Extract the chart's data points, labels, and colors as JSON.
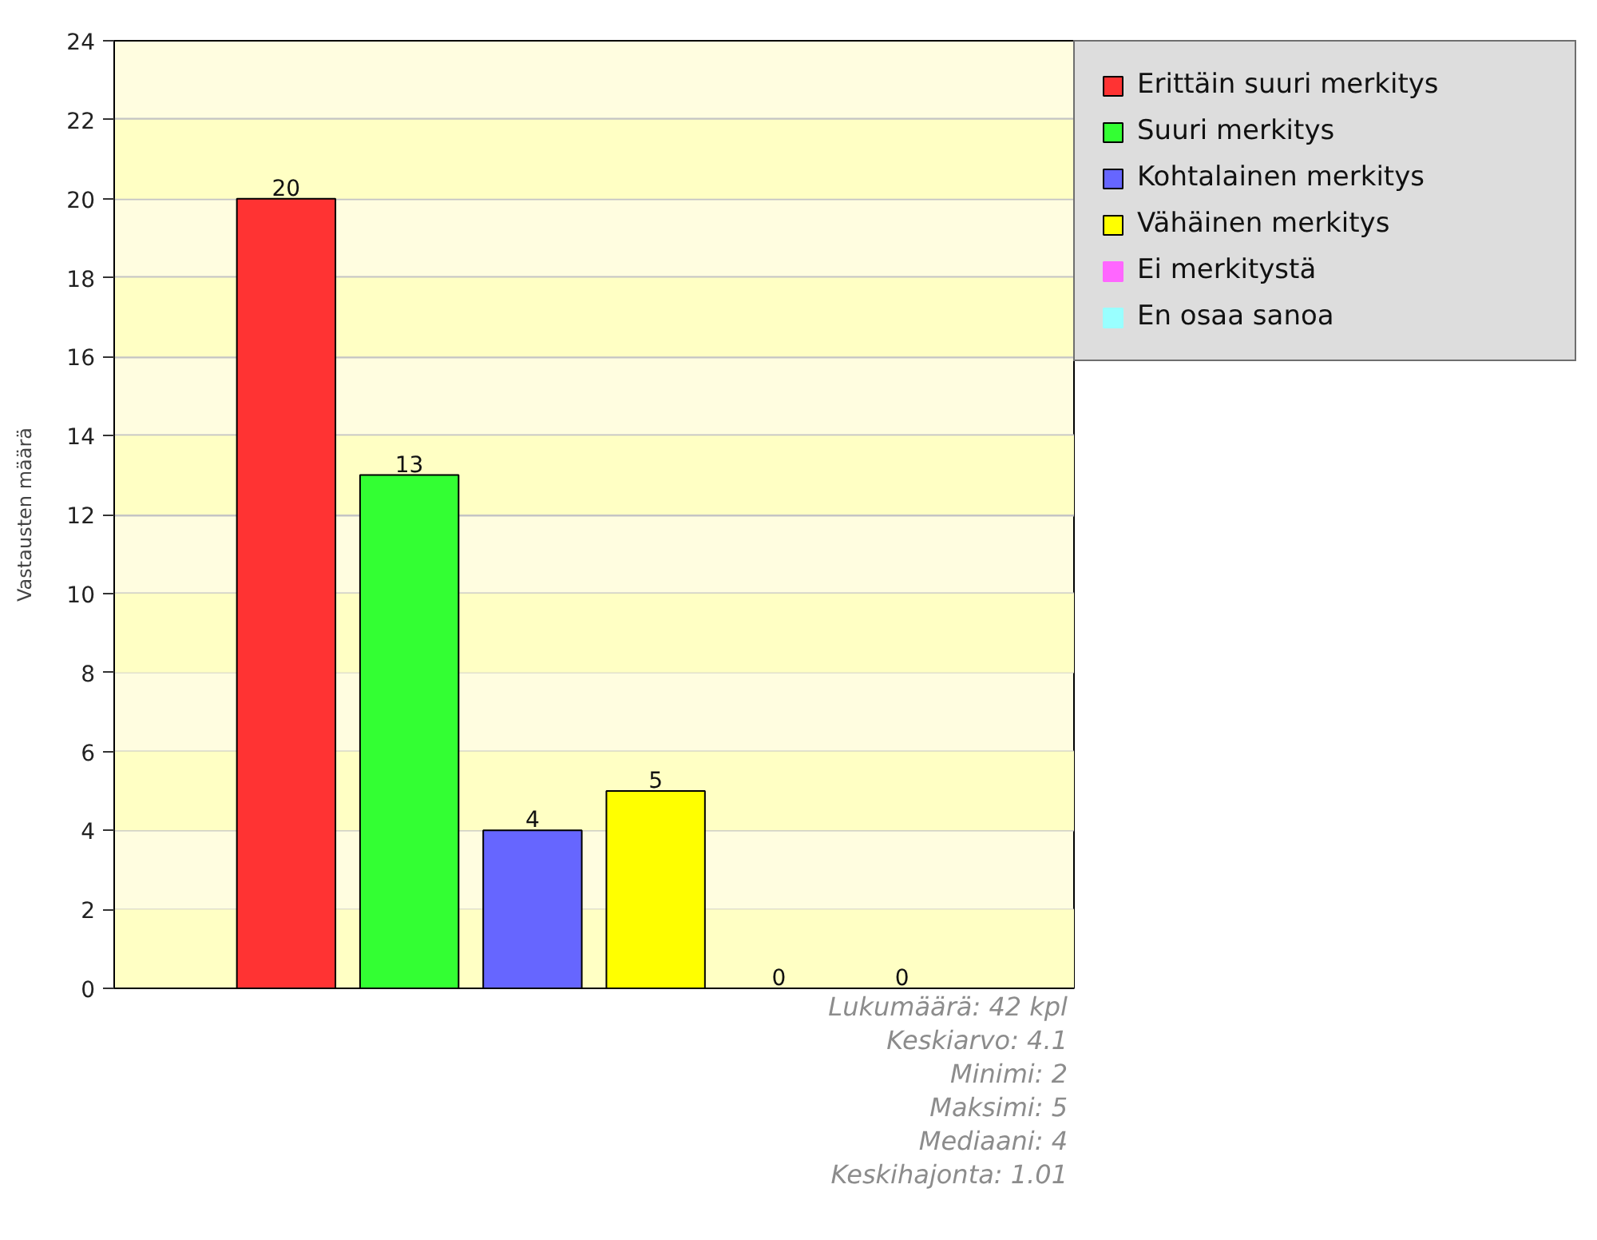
{
  "chart_data": {
    "type": "bar",
    "categories": [
      null
    ],
    "series": [
      {
        "name": "Erittäin suuri merkitys",
        "color": "#ff3333",
        "values": [
          20
        ]
      },
      {
        "name": "Suuri merkitys",
        "color": "#33ff33",
        "values": [
          13
        ]
      },
      {
        "name": "Kohtalainen merkitys",
        "color": "#6666ff",
        "values": [
          4
        ]
      },
      {
        "name": "Vähäinen merkitys",
        "color": "#ffff00",
        "values": [
          5
        ]
      },
      {
        "name": "Ei merkitystä",
        "color": "#ff66ff",
        "values": [
          0
        ]
      },
      {
        "name": "En osaa sanoa",
        "color": "#99ffff",
        "values": [
          0
        ]
      }
    ],
    "ylabel": "Vastausten määrä",
    "ylim": [
      0,
      24
    ],
    "yticks": [
      0,
      2,
      4,
      6,
      8,
      10,
      12,
      14,
      16,
      18,
      20,
      22,
      24
    ],
    "bands": [
      {
        "axis": "y",
        "from": 0,
        "to": 2,
        "color": "#ffffc4"
      },
      {
        "axis": "y",
        "from": 4,
        "to": 6,
        "color": "#ffffc4"
      },
      {
        "axis": "y",
        "from": 8,
        "to": 10,
        "color": "#ffffc4"
      },
      {
        "axis": "y",
        "from": 12,
        "to": 14,
        "color": "#ffffc4"
      },
      {
        "axis": "y",
        "from": 16,
        "to": 18,
        "color": "#ffffc4"
      },
      {
        "axis": "y",
        "from": 20,
        "to": 22,
        "color": "#ffffc4"
      }
    ],
    "grid": "y",
    "legend": "top right",
    "data_labels": true,
    "tick_labels": "y",
    "annotations": [
      "Lukumäärä: 42 kpl",
      "Keskiarvo: 4.1",
      "Minimi: 2",
      "Maksimi: 5",
      "Mediaani: 4",
      "Keskihajonta: 1.01"
    ]
  }
}
